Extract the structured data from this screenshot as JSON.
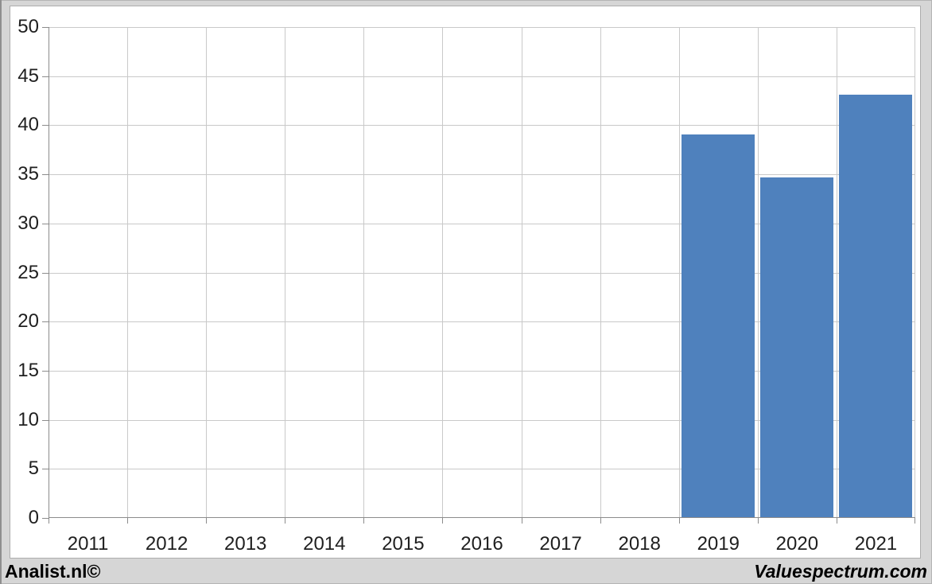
{
  "chart_data": {
    "type": "bar",
    "title": "",
    "xlabel": "",
    "ylabel": "",
    "categories": [
      "2011",
      "2012",
      "2013",
      "2014",
      "2015",
      "2016",
      "2017",
      "2018",
      "2019",
      "2020",
      "2021"
    ],
    "values": [
      null,
      null,
      null,
      null,
      null,
      null,
      null,
      null,
      39.1,
      34.7,
      43.1
    ],
    "ylim": [
      0,
      50
    ],
    "ytick_step": 5,
    "ytick_labels": [
      "0",
      "5",
      "10",
      "15",
      "20",
      "25",
      "30",
      "35",
      "40",
      "45",
      "50"
    ],
    "grid": true,
    "legend": "none",
    "bar_color": "#4F81BD",
    "gridline_color": "#C9C9C9",
    "axis_color": "#8C8C8C",
    "plot_background": "#FFFFFF",
    "frame_background": "#D6D6D6"
  },
  "footer": {
    "left_text": "Analist.nl©",
    "right_text": "Valuespectrum.com"
  }
}
